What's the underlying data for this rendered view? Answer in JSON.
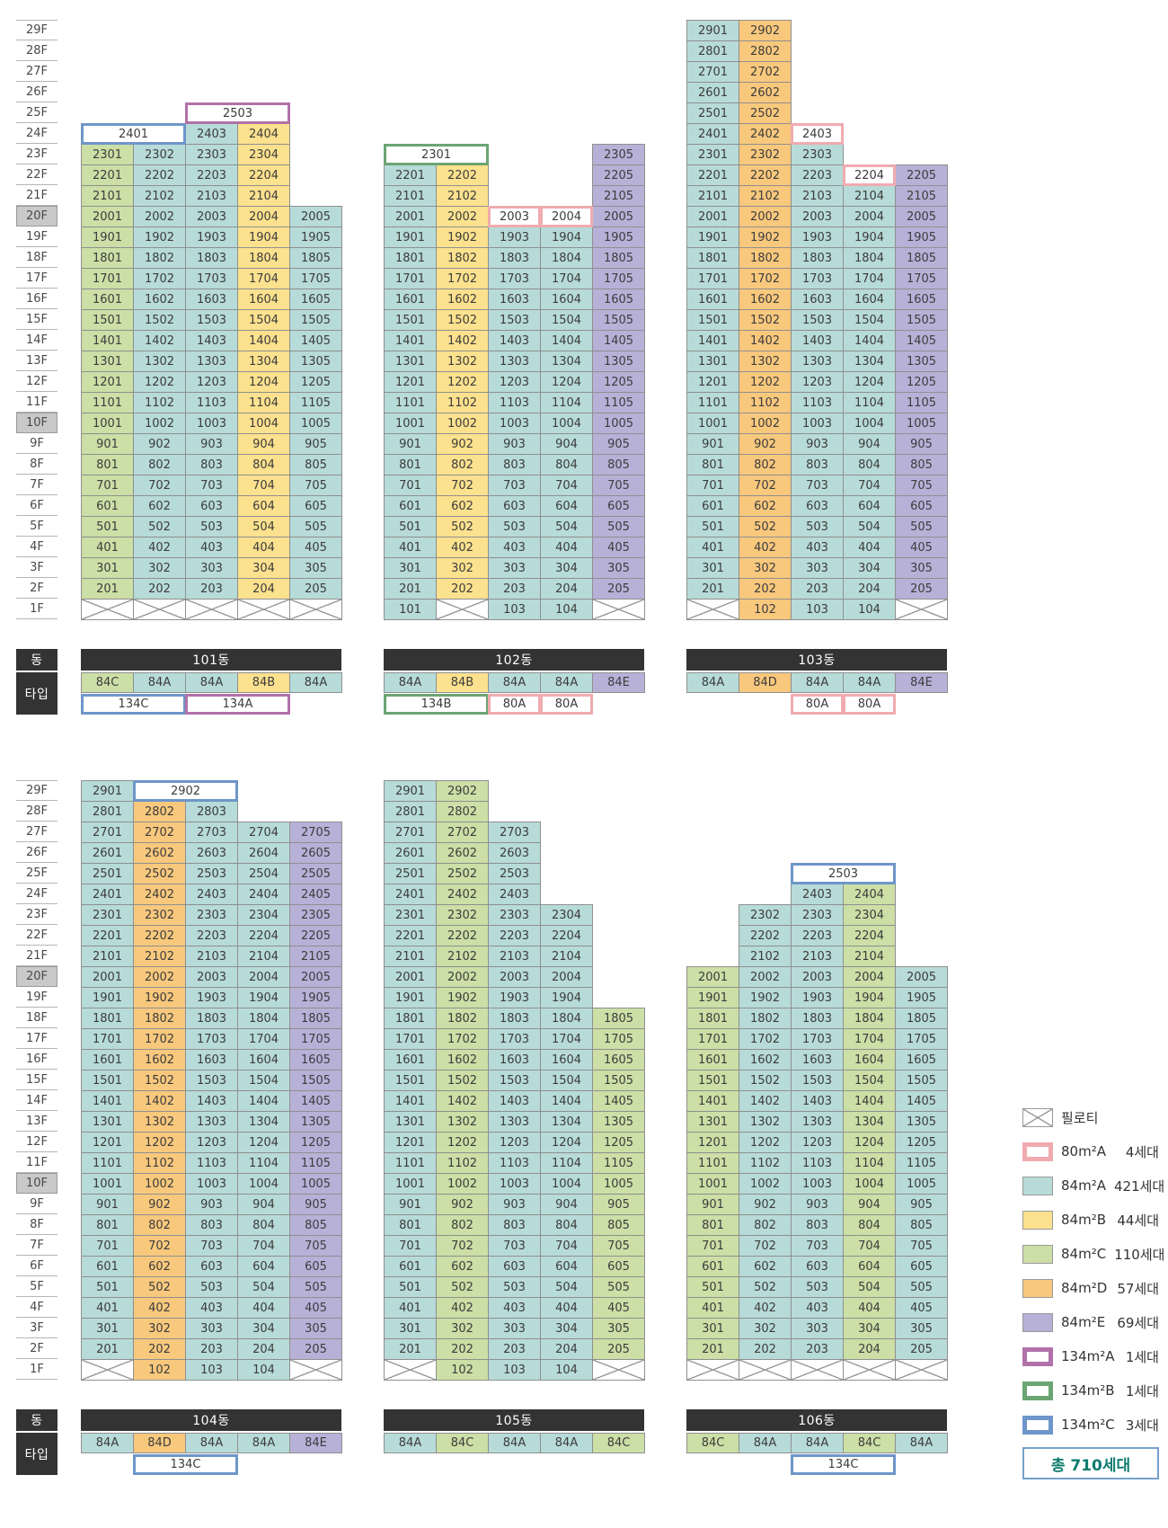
{
  "floor_axis": {
    "labels": [
      "29F",
      "28F",
      "27F",
      "26F",
      "25F",
      "24F",
      "23F",
      "22F",
      "21F",
      "20F",
      "19F",
      "18F",
      "17F",
      "16F",
      "15F",
      "14F",
      "13F",
      "12F",
      "11F",
      "10F",
      "9F",
      "8F",
      "7F",
      "6F",
      "5F",
      "4F",
      "3F",
      "2F",
      "1F"
    ],
    "highlighted": [
      "20F",
      "10F"
    ]
  },
  "row_headers": {
    "dong": "동",
    "type": "타입"
  },
  "type_styles": {
    "84A": {
      "fill": "#b7dbd8"
    },
    "84B": {
      "fill": "#fce18e"
    },
    "84C": {
      "fill": "#cbdfa6"
    },
    "84D": {
      "fill": "#f8c87d"
    },
    "84E": {
      "fill": "#b7b1d8"
    },
    "80A": {
      "fill": "#ffffff",
      "border": "#f0abaf"
    },
    "134A": {
      "fill": "#ffffff",
      "border": "#b171a9"
    },
    "134B": {
      "fill": "#ffffff",
      "border": "#6ba572"
    },
    "134C": {
      "fill": "#ffffff",
      "border": "#6e96c9"
    }
  },
  "buildings": [
    {
      "name": "101동",
      "row": 0,
      "col": 0,
      "types": [
        "84C",
        "84A",
        "84A",
        "84B",
        "84A"
      ],
      "columns": [
        {
          "col": 1,
          "type": "84C",
          "from": 2,
          "to": 23
        },
        {
          "col": 2,
          "type": "84A",
          "from": 2,
          "to": 23
        },
        {
          "col": 3,
          "type": "84A",
          "from": 2,
          "to": 24
        },
        {
          "col": 4,
          "type": "84B",
          "from": 2,
          "to": 24
        },
        {
          "col": 5,
          "type": "84A",
          "from": 2,
          "to": 20
        }
      ],
      "special_cells": [
        {
          "floor": 24,
          "col": 1,
          "span": 2,
          "label": "2401",
          "type": "134C"
        },
        {
          "floor": 25,
          "col": 3,
          "span": 2,
          "label": "2503",
          "type": "134A"
        }
      ],
      "piloti": [
        1,
        2,
        3,
        4,
        5
      ],
      "sub_types": [
        {
          "label": "134C",
          "type": "134C",
          "col": 1,
          "span": 2
        },
        {
          "label": "134A",
          "type": "134A",
          "col": 3,
          "span": 2
        }
      ]
    },
    {
      "name": "102동",
      "row": 0,
      "col": 1,
      "types": [
        "84A",
        "84B",
        "84A",
        "84A",
        "84E"
      ],
      "columns": [
        {
          "col": 1,
          "type": "84A",
          "from": 1,
          "to": 22
        },
        {
          "col": 2,
          "type": "84B",
          "from": 2,
          "to": 22
        },
        {
          "col": 3,
          "type": "84A",
          "from": 1,
          "to": 19
        },
        {
          "col": 4,
          "type": "84A",
          "from": 1,
          "to": 19
        },
        {
          "col": 5,
          "type": "84E",
          "from": 2,
          "to": 23
        }
      ],
      "special_cells": [
        {
          "floor": 23,
          "col": 1,
          "span": 2,
          "label": "2301",
          "type": "134B"
        },
        {
          "floor": 20,
          "col": 3,
          "span": 1,
          "label": "2003",
          "type": "80A"
        },
        {
          "floor": 20,
          "col": 4,
          "span": 1,
          "label": "2004",
          "type": "80A"
        }
      ],
      "piloti": [
        2,
        5
      ],
      "sub_types": [
        {
          "label": "134B",
          "type": "134B",
          "col": 1,
          "span": 2
        },
        {
          "label": "80A",
          "type": "80A",
          "col": 3,
          "span": 1
        },
        {
          "label": "80A",
          "type": "80A",
          "col": 4,
          "span": 1
        }
      ]
    },
    {
      "name": "103동",
      "row": 0,
      "col": 2,
      "types": [
        "84A",
        "84D",
        "84A",
        "84A",
        "84E"
      ],
      "columns": [
        {
          "col": 1,
          "type": "84A",
          "from": 2,
          "to": 29
        },
        {
          "col": 2,
          "type": "84D",
          "from": 1,
          "to": 29
        },
        {
          "col": 3,
          "type": "84A",
          "from": 1,
          "to": 23
        },
        {
          "col": 4,
          "type": "84A",
          "from": 1,
          "to": 21
        },
        {
          "col": 5,
          "type": "84E",
          "from": 2,
          "to": 22
        }
      ],
      "special_cells": [
        {
          "floor": 24,
          "col": 3,
          "span": 1,
          "label": "2403",
          "type": "80A"
        },
        {
          "floor": 22,
          "col": 4,
          "span": 1,
          "label": "2204",
          "type": "80A"
        }
      ],
      "piloti": [
        1,
        5
      ],
      "sub_types": [
        {
          "label": "80A",
          "type": "80A",
          "col": 3,
          "span": 1
        },
        {
          "label": "80A",
          "type": "80A",
          "col": 4,
          "span": 1
        }
      ]
    },
    {
      "name": "104동",
      "row": 1,
      "col": 0,
      "types": [
        "84A",
        "84D",
        "84A",
        "84A",
        "84E"
      ],
      "columns": [
        {
          "col": 1,
          "type": "84A",
          "from": 2,
          "to": 29
        },
        {
          "col": 2,
          "type": "84D",
          "from": 1,
          "to": 28
        },
        {
          "col": 3,
          "type": "84A",
          "from": 1,
          "to": 28
        },
        {
          "col": 4,
          "type": "84A",
          "from": 1,
          "to": 27
        },
        {
          "col": 5,
          "type": "84E",
          "from": 2,
          "to": 27
        }
      ],
      "special_cells": [
        {
          "floor": 29,
          "col": 2,
          "span": 2,
          "label": "2902",
          "type": "134C"
        }
      ],
      "piloti": [
        1,
        5
      ],
      "sub_types": [
        {
          "label": "134C",
          "type": "134C",
          "col": 2,
          "span": 2
        }
      ]
    },
    {
      "name": "105동",
      "row": 1,
      "col": 1,
      "types": [
        "84A",
        "84C",
        "84A",
        "84A",
        "84C"
      ],
      "columns": [
        {
          "col": 1,
          "type": "84A",
          "from": 2,
          "to": 29
        },
        {
          "col": 2,
          "type": "84C",
          "from": 1,
          "to": 29
        },
        {
          "col": 3,
          "type": "84A",
          "from": 1,
          "to": 27
        },
        {
          "col": 4,
          "type": "84A",
          "from": 1,
          "to": 23
        },
        {
          "col": 5,
          "type": "84C",
          "from": 2,
          "to": 18
        }
      ],
      "special_cells": [],
      "piloti": [
        1,
        5
      ],
      "sub_types": []
    },
    {
      "name": "106동",
      "row": 1,
      "col": 2,
      "types": [
        "84C",
        "84A",
        "84A",
        "84C",
        "84A"
      ],
      "columns": [
        {
          "col": 1,
          "type": "84C",
          "from": 2,
          "to": 20
        },
        {
          "col": 2,
          "type": "84A",
          "from": 2,
          "to": 23
        },
        {
          "col": 3,
          "type": "84A",
          "from": 2,
          "to": 24
        },
        {
          "col": 4,
          "type": "84C",
          "from": 2,
          "to": 24
        },
        {
          "col": 5,
          "type": "84A",
          "from": 2,
          "to": 20
        }
      ],
      "special_cells": [
        {
          "floor": 25,
          "col": 3,
          "span": 2,
          "label": "2503",
          "type": "134C"
        }
      ],
      "piloti": [
        1,
        2,
        3,
        4,
        5
      ],
      "sub_types": [
        {
          "label": "134C",
          "type": "134C",
          "col": 3,
          "span": 2
        }
      ]
    }
  ],
  "legend": {
    "items": [
      {
        "style": "piloti",
        "label": "필로티",
        "count": ""
      },
      {
        "style": "80A",
        "label": "80m²A",
        "count": "4세대"
      },
      {
        "style": "84A",
        "label": "84m²A",
        "count": "421세대"
      },
      {
        "style": "84B",
        "label": "84m²B",
        "count": "44세대"
      },
      {
        "style": "84C",
        "label": "84m²C",
        "count": "110세대"
      },
      {
        "style": "84D",
        "label": "84m²D",
        "count": "57세대"
      },
      {
        "style": "84E",
        "label": "84m²E",
        "count": "69세대"
      },
      {
        "style": "134A",
        "label": "134m²A",
        "count": "1세대"
      },
      {
        "style": "134B",
        "label": "134m²B",
        "count": "1세대"
      },
      {
        "style": "134C",
        "label": "134m²C",
        "count": "3세대"
      }
    ],
    "total": "총 710세대"
  }
}
